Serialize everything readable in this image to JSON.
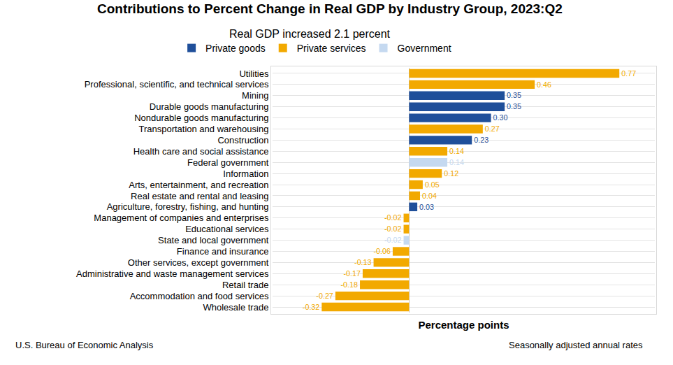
{
  "chart_data": {
    "type": "bar",
    "orientation": "horizontal",
    "stacked": false,
    "title": "Contributions to Percent Change in Real GDP by Industry Group, 2023:Q2",
    "subtitle": "Real GDP increased 2.1 percent",
    "x_label": "Percentage points",
    "annotations": [
      "U.S. Bureau of Economic Analysis",
      "Seasonally adjusted annual rates"
    ],
    "legend": "top",
    "grid": true,
    "data_labels": true,
    "tick_labels": "y",
    "xlim": [
      -0.5,
      0.9
    ],
    "categories": [
      "Utilities",
      "Professional, scientific, and technical services",
      "Mining",
      "Durable goods manufacturing",
      "Nondurable goods manufacturing",
      "Transportation and warehousing",
      "Construction",
      "Health care and social assistance",
      "Federal government",
      "Information",
      "Arts, entertainment, and recreation",
      "Real estate and rental and leasing",
      "Agriculture, forestry, fishing, and hunting",
      "Management of companies and enterprises",
      "Educational services",
      "State and local government",
      "Finance and insurance",
      "Other services, except government",
      "Administrative and waste management services",
      "Retail trade",
      "Accommodation and food services",
      "Wholesale trade"
    ],
    "series": [
      {
        "name": "Private goods",
        "color": "#1f4f9a",
        "values": [
          null,
          null,
          0.35,
          0.35,
          0.3,
          null,
          0.23,
          null,
          null,
          null,
          null,
          null,
          0.03,
          null,
          null,
          null,
          null,
          null,
          null,
          null,
          null,
          null
        ],
        "value_labels": [
          null,
          null,
          "0.35",
          "0.35",
          "0.30",
          null,
          "0.23",
          null,
          null,
          null,
          null,
          null,
          "0.03",
          null,
          null,
          null,
          null,
          null,
          null,
          null,
          null,
          null
        ]
      },
      {
        "name": "Private services",
        "color": "#f2a900",
        "values": [
          0.77,
          0.46,
          null,
          null,
          null,
          0.27,
          null,
          0.14,
          null,
          0.12,
          0.05,
          0.04,
          null,
          -0.02,
          -0.02,
          null,
          -0.06,
          -0.13,
          -0.17,
          -0.18,
          -0.27,
          -0.32
        ],
        "value_labels": [
          "0.77",
          "0.46",
          null,
          null,
          null,
          "0.27",
          null,
          "0.14",
          null,
          "0.12",
          "0.05",
          "0.04",
          null,
          "-0.02",
          "-0.02",
          null,
          "-0.06",
          "-0.13",
          "-0.17",
          "-0.18",
          "-0.27",
          "-0.32"
        ]
      },
      {
        "name": "Government",
        "color": "#c5d9f0",
        "values": [
          null,
          null,
          null,
          null,
          null,
          null,
          null,
          null,
          0.14,
          null,
          null,
          null,
          null,
          null,
          null,
          -0.02,
          null,
          null,
          null,
          null,
          null,
          null
        ],
        "value_labels": [
          null,
          null,
          null,
          null,
          null,
          null,
          null,
          null,
          "0.14",
          null,
          null,
          null,
          null,
          null,
          null,
          "-0.02",
          null,
          null,
          null,
          null,
          null,
          null
        ]
      }
    ]
  }
}
